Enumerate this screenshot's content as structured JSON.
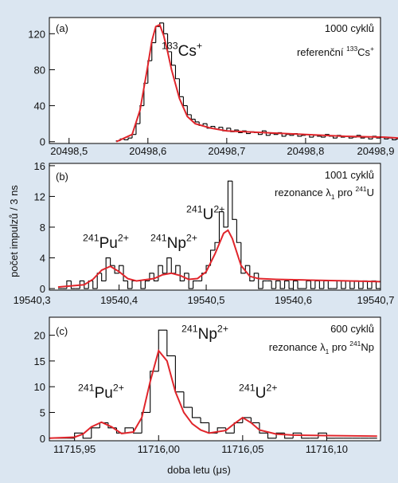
{
  "x_label": "doba letu (μs)",
  "y_label": "počet impulzů / 3 ns",
  "chart_data": [
    {
      "type": "histogram",
      "color": "#000000",
      "annotations": [
        [
          {
            "text": "(a)"
          }
        ],
        [
          {
            "text": "1000 cyklů"
          }
        ],
        [
          {
            "text": "referenční "
          },
          {
            "text": "133",
            "style": "sup"
          },
          {
            "text": "Cs"
          },
          {
            "text": "+",
            "style": "sup"
          }
        ],
        [
          {
            "text": "133",
            "style": "sup"
          },
          {
            "text": "Cs"
          },
          {
            "text": "+",
            "style": "sup"
          }
        ]
      ],
      "bins": [
        20498.56,
        20498.565,
        20498.57,
        20498.575,
        20498.58,
        20498.585,
        20498.59,
        20498.595,
        20498.6,
        20498.605,
        20498.61,
        20498.615,
        20498.62,
        20498.625,
        20498.63,
        20498.635,
        20498.64,
        20498.645,
        20498.65,
        20498.655,
        20498.66,
        20498.665,
        20498.67,
        20498.675,
        20498.68,
        20498.685,
        20498.69,
        20498.695,
        20498.7,
        20498.705,
        20498.71,
        20498.715,
        20498.72,
        20498.725,
        20498.73,
        20498.735,
        20498.74,
        20498.745,
        20498.75,
        20498.755,
        20498.76,
        20498.765,
        20498.77,
        20498.775,
        20498.78,
        20498.785,
        20498.79,
        20498.795,
        20498.8,
        20498.805,
        20498.81,
        20498.815,
        20498.82,
        20498.825,
        20498.83,
        20498.835,
        20498.84,
        20498.845,
        20498.85,
        20498.855,
        20498.86,
        20498.865,
        20498.87,
        20498.875,
        20498.88,
        20498.885,
        20498.89,
        20498.895,
        20498.9,
        20498.905,
        20498.91,
        20498.915,
        20498.92
      ],
      "counts": [
        1,
        3,
        2,
        4,
        8,
        20,
        40,
        65,
        90,
        110,
        128,
        132,
        120,
        100,
        85,
        70,
        50,
        40,
        30,
        25,
        22,
        18,
        20,
        15,
        17,
        14,
        16,
        12,
        15,
        11,
        13,
        10,
        12,
        9,
        11,
        10,
        8,
        12,
        7,
        9,
        8,
        10,
        6,
        8,
        7,
        9,
        6,
        7,
        8,
        5,
        7,
        6,
        5,
        8,
        6,
        4,
        7,
        5,
        6,
        4,
        5,
        7,
        4,
        5,
        3,
        6,
        4,
        5,
        3,
        4,
        2,
        3
      ],
      "series": [
        {
          "type": "line",
          "color": "#e0252b",
          "x": [
            20498.56,
            20498.58,
            20498.59,
            20498.6,
            20498.605,
            20498.61,
            20498.615,
            20498.62,
            20498.625,
            20498.63,
            20498.64,
            20498.65,
            20498.66,
            20498.68,
            20498.7,
            20498.75,
            20498.8,
            20498.85,
            20498.9,
            20498.92
          ],
          "values": [
            0,
            8,
            35,
            85,
            112,
            128,
            130,
            118,
            100,
            80,
            48,
            28,
            20,
            15,
            12,
            10,
            8,
            6,
            5,
            4
          ]
        }
      ],
      "xlim": [
        20498.475,
        20498.895
      ],
      "xticks": [
        {
          "value": 20498.5,
          "label": "20498,5"
        },
        {
          "value": 20498.6,
          "label": "20498,6"
        },
        {
          "value": 20498.7,
          "label": "20498,7"
        },
        {
          "value": 20498.8,
          "label": "20498,8"
        },
        {
          "value": 20498.9,
          "label": "20498,9"
        }
      ],
      "ylim": [
        -2,
        138
      ],
      "yticks": [
        0,
        40,
        80,
        120
      ]
    },
    {
      "type": "histogram",
      "color": "#000000",
      "annotations": [
        [
          {
            "text": "(b)"
          }
        ],
        [
          {
            "text": "1001 cyklů"
          }
        ],
        [
          {
            "text": "rezonance λ"
          },
          {
            "text": "1",
            "style": "sub"
          },
          {
            "text": " pro "
          },
          {
            "text": "241",
            "style": "sup"
          },
          {
            "text": "U"
          }
        ],
        [
          {
            "text": "241",
            "style": "sup"
          },
          {
            "text": "U"
          },
          {
            "text": "2+",
            "style": "sup"
          }
        ],
        [
          {
            "text": "241",
            "style": "sup"
          },
          {
            "text": "Pu"
          },
          {
            "text": "2+",
            "style": "sup"
          }
        ],
        [
          {
            "text": "241",
            "style": "sup"
          },
          {
            "text": "Np"
          },
          {
            "text": "2+",
            "style": "sup"
          }
        ]
      ],
      "bins": [
        19540.33,
        19540.335,
        19540.34,
        19540.345,
        19540.35,
        19540.355,
        19540.36,
        19540.365,
        19540.37,
        19540.375,
        19540.38,
        19540.385,
        19540.39,
        19540.395,
        19540.4,
        19540.405,
        19540.41,
        19540.415,
        19540.42,
        19540.425,
        19540.43,
        19540.435,
        19540.44,
        19540.445,
        19540.45,
        19540.455,
        19540.46,
        19540.465,
        19540.47,
        19540.475,
        19540.48,
        19540.485,
        19540.49,
        19540.495,
        19540.5,
        19540.505,
        19540.51,
        19540.515,
        19540.52,
        19540.525,
        19540.53,
        19540.535,
        19540.54,
        19540.545,
        19540.55,
        19540.555,
        19540.56,
        19540.565,
        19540.57,
        19540.575,
        19540.58,
        19540.585,
        19540.59,
        19540.595,
        19540.6,
        19540.605,
        19540.61,
        19540.615,
        19540.62,
        19540.625,
        19540.63,
        19540.635,
        19540.64,
        19540.645,
        19540.65,
        19540.655,
        19540.66,
        19540.665,
        19540.67,
        19540.675,
        19540.68,
        19540.685,
        19540.69,
        19540.695,
        19540.7
      ],
      "counts": [
        0,
        0,
        1,
        0,
        0,
        1,
        0,
        1,
        0,
        2,
        1,
        4,
        3,
        2,
        3,
        1,
        0,
        1,
        1,
        0,
        1,
        2,
        1,
        3,
        2,
        4,
        2,
        3,
        1,
        2,
        0,
        1,
        1,
        2,
        3,
        5,
        6,
        10,
        8,
        14,
        9,
        6,
        2,
        3,
        1,
        2,
        0,
        1,
        1,
        0,
        1,
        0,
        1,
        0,
        1,
        0,
        0,
        1,
        0,
        1,
        0,
        1,
        0,
        0,
        1,
        0,
        1,
        0,
        1,
        0,
        1,
        0,
        1,
        0
      ],
      "series": [
        {
          "type": "line",
          "color": "#e0252b",
          "x": [
            19540.33,
            19540.36,
            19540.37,
            19540.38,
            19540.39,
            19540.4,
            19540.41,
            19540.42,
            19540.44,
            19540.45,
            19540.46,
            19540.47,
            19540.48,
            19540.49,
            19540.5,
            19540.51,
            19540.52,
            19540.525,
            19540.53,
            19540.54,
            19540.55,
            19540.56,
            19540.58,
            19540.62,
            19540.66,
            19540.7
          ],
          "values": [
            0.2,
            0.5,
            1.2,
            2.4,
            2.9,
            2.2,
            1.3,
            1.0,
            1.3,
            1.8,
            2.0,
            1.7,
            1.2,
            1.3,
            2.2,
            4.5,
            7.2,
            7.6,
            6.5,
            3.0,
            1.6,
            1.3,
            1.2,
            1.1,
            1.0,
            0.9
          ]
        }
      ],
      "xlim": [
        19540.32,
        19540.7
      ],
      "xticks": [
        {
          "value": 19540.3,
          "label": "19540,3"
        },
        {
          "value": 19540.4,
          "label": "19540,4"
        },
        {
          "value": 19540.5,
          "label": "19540,5"
        },
        {
          "value": 19540.6,
          "label": "19540,6"
        },
        {
          "value": 19540.7,
          "label": "19540,7"
        }
      ],
      "ylim": [
        -0.2,
        16.3
      ],
      "yticks": [
        0,
        4,
        8,
        12,
        16
      ]
    },
    {
      "type": "histogram",
      "color": "#000000",
      "annotations": [
        [
          {
            "text": "(c)"
          }
        ],
        [
          {
            "text": "600 cyklů"
          }
        ],
        [
          {
            "text": "rezonance λ"
          },
          {
            "text": "1",
            "style": "sub"
          },
          {
            "text": " pro "
          },
          {
            "text": "241",
            "style": "sup"
          },
          {
            "text": "Np"
          }
        ],
        [
          {
            "text": "241",
            "style": "sup"
          },
          {
            "text": "Np"
          },
          {
            "text": "2+",
            "style": "sup"
          }
        ],
        [
          {
            "text": "241",
            "style": "sup"
          },
          {
            "text": "Pu"
          },
          {
            "text": "2+",
            "style": "sup"
          }
        ],
        [
          {
            "text": "241",
            "style": "sup"
          },
          {
            "text": "U"
          },
          {
            "text": "2+",
            "style": "sup"
          }
        ]
      ],
      "bins": [
        11715.935,
        11715.94,
        11715.945,
        11715.95,
        11715.955,
        11715.96,
        11715.965,
        11715.97,
        11715.975,
        11715.98,
        11715.985,
        11715.99,
        11715.995,
        11716,
        11716.005,
        11716.01,
        11716.015,
        11716.02,
        11716.025,
        11716.03,
        11716.035,
        11716.04,
        11716.045,
        11716.05,
        11716.055,
        11716.06,
        11716.065,
        11716.07,
        11716.075,
        11716.08,
        11716.085,
        11716.09,
        11716.095,
        11716.1,
        11716.105,
        11716.11,
        11716.115,
        11716.12,
        11716.125,
        11716.13
      ],
      "counts": [
        0,
        0,
        0,
        1,
        0,
        2,
        3,
        2,
        1,
        2,
        1,
        5,
        13,
        21,
        16,
        9,
        6,
        4,
        3,
        1,
        2,
        1,
        3,
        4,
        3,
        1,
        0,
        1,
        0,
        1,
        0,
        0,
        1,
        0,
        0,
        0,
        0,
        0,
        0
      ],
      "series": [
        {
          "type": "line",
          "color": "#e0252b",
          "x": [
            11715.935,
            11715.95,
            11715.955,
            11715.96,
            11715.966,
            11715.972,
            11715.978,
            11715.985,
            11715.99,
            11715.995,
            11716,
            11716.005,
            11716.01,
            11716.015,
            11716.02,
            11716.025,
            11716.03,
            11716.04,
            11716.045,
            11716.05,
            11716.055,
            11716.06,
            11716.07,
            11716.08,
            11716.1,
            11716.13
          ],
          "values": [
            0,
            0.2,
            0.8,
            2.2,
            3.1,
            2.2,
            0.9,
            1.2,
            4,
            11,
            17,
            15,
            9,
            5,
            2.8,
            1.6,
            1.0,
            1.5,
            2.8,
            4.0,
            3.0,
            1.6,
            0.8,
            0.6,
            0.5,
            0.4
          ]
        }
      ],
      "xlim": [
        11715.935,
        11716.132
      ],
      "xticks": [
        {
          "value": 11715.95,
          "label": "11715,95"
        },
        {
          "value": 11716,
          "label": "11716,00"
        },
        {
          "value": 11716.05,
          "label": "11716,05"
        },
        {
          "value": 11716.1,
          "label": "11716,10"
        }
      ],
      "ylim": [
        -0.5,
        23.5
      ],
      "yticks": [
        0,
        5,
        10,
        15,
        20
      ]
    }
  ]
}
